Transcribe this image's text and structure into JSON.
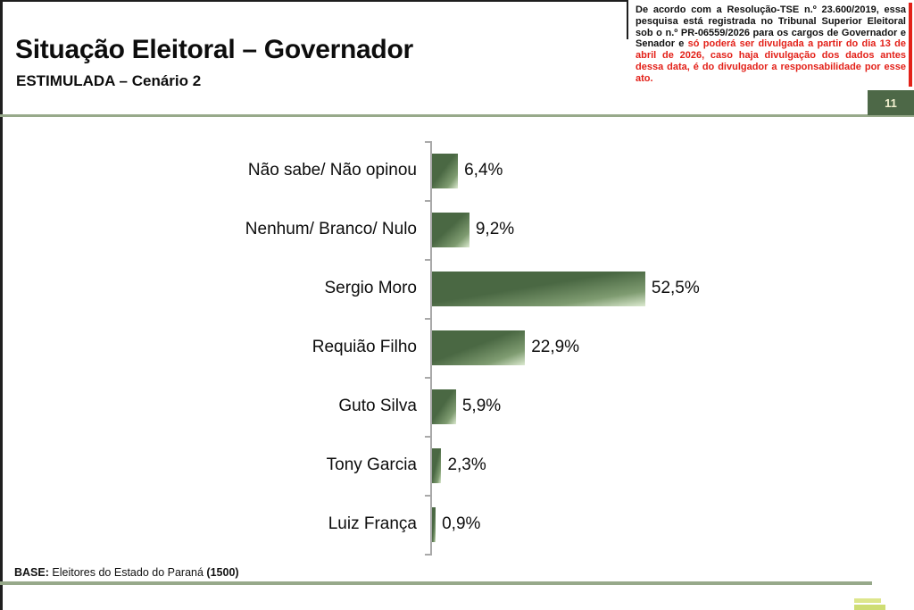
{
  "header": {
    "title": "Situação Eleitoral – Governador",
    "subtitle": "ESTIMULADA – Cenário 2",
    "page_number": "11"
  },
  "legal_notice": {
    "black_text": "De acordo com a Resolução-TSE n.º 23.600/2019, essa pesquisa está registrada no Tribunal Superior Eleitoral sob o n.º PR-06559/2026 para os cargos de Governador e Senador e ",
    "red_text": "só poderá ser divulgada a partir do dia 13 de abril de 2026, caso haja divulgação dos dados antes dessa data, é do divulgador a responsabilidade por esse ato."
  },
  "chart_data": {
    "type": "bar",
    "orientation": "horizontal",
    "title": "Situação Eleitoral – Governador / ESTIMULADA – Cenário 2",
    "categories": [
      "Não sabe/ Não opinou",
      "Nenhum/ Branco/ Nulo",
      "Sergio Moro",
      "Requião Filho",
      "Guto Silva",
      "Tony Garcia",
      "Luiz França"
    ],
    "values": [
      6.4,
      9.2,
      52.5,
      22.9,
      5.9,
      2.3,
      0.9
    ],
    "value_labels": [
      "6,4%",
      "9,2%",
      "52,5%",
      "22,9%",
      "5,9%",
      "2,3%",
      "0,9%"
    ],
    "xlabel": "",
    "ylabel": "",
    "xlim": [
      0,
      60
    ],
    "grid": false,
    "legend": false,
    "bar_color_dark": "#4a6843",
    "bar_color_light": "#dcead0"
  },
  "footer": {
    "base_label": "BASE:",
    "base_text": " Eleitores do Estado do Paraná ",
    "base_count": "(1500)"
  },
  "colors": {
    "divider_green": "#97a98a",
    "page_box_green": "#4d6847",
    "legal_red": "#e32119",
    "axis_gray": "#a9a9a9",
    "logo_lime": "#cedd73"
  }
}
